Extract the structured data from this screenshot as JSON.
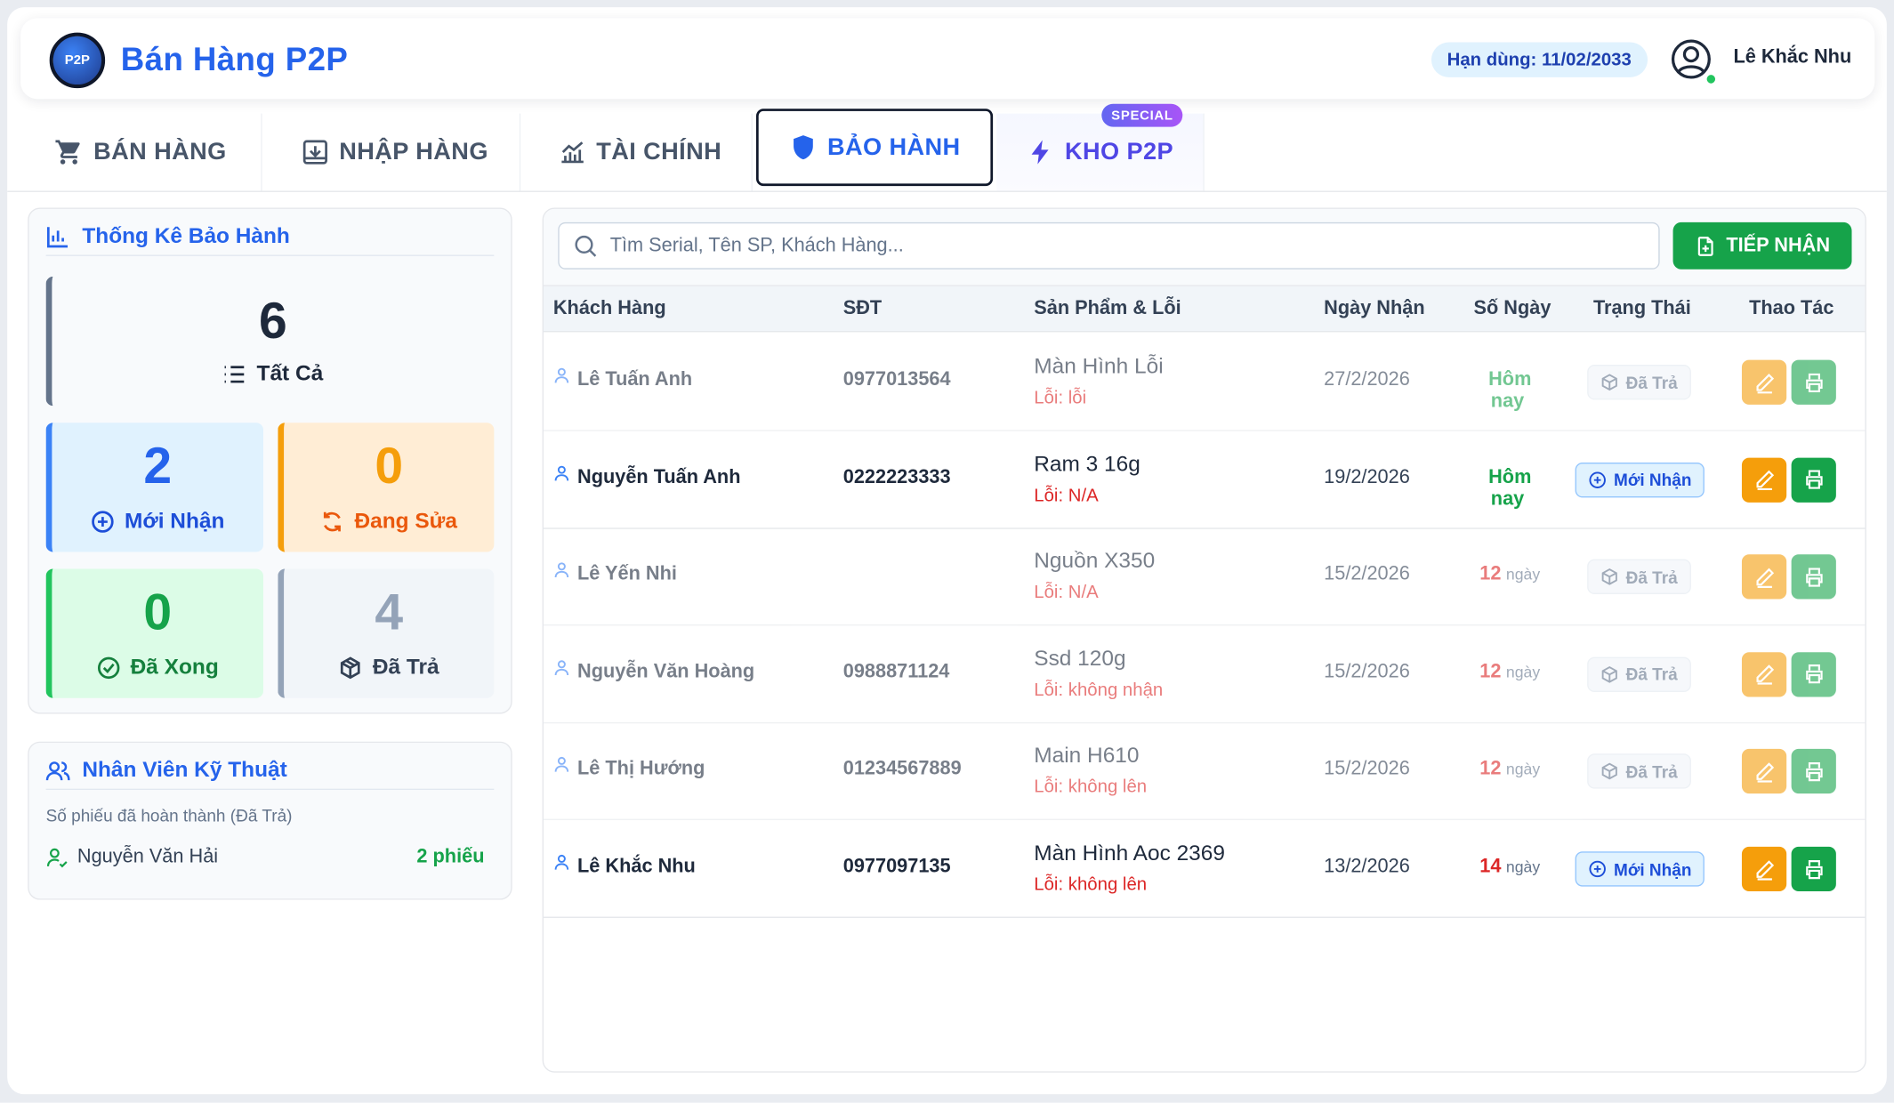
{
  "app": {
    "logo_text": "P2P",
    "title": "Bán Hàng P2P",
    "expiry": "Hạn dùng: 11/02/2033",
    "user_name": "Lê Khắc Nhu"
  },
  "tabs": [
    {
      "label": "BÁN HÀNG",
      "icon": "cart-icon"
    },
    {
      "label": "NHẬP HÀNG",
      "icon": "import-icon"
    },
    {
      "label": "TÀI CHÍNH",
      "icon": "chart-icon"
    },
    {
      "label": "BẢO HÀNH",
      "icon": "shield-icon",
      "active": true
    },
    {
      "label": "KHO P2P",
      "icon": "bolt-icon",
      "badge": "SPECIAL"
    }
  ],
  "stats_panel": {
    "title": "Thống Kê Bảo Hành",
    "all": {
      "value": "6",
      "label": "Tất Cả"
    },
    "new": {
      "value": "2",
      "label": "Mới Nhận"
    },
    "repair": {
      "value": "0",
      "label": "Đang Sửa"
    },
    "done": {
      "value": "0",
      "label": "Đã Xong"
    },
    "returned": {
      "value": "4",
      "label": "Đã Trả"
    }
  },
  "tech_panel": {
    "title": "Nhân Viên Kỹ Thuật",
    "subtitle": "Số phiếu đã hoàn thành (Đã Trả)",
    "technicians": [
      {
        "name": "Nguyễn Văn Hải",
        "count": "2 phiếu"
      }
    ]
  },
  "search": {
    "placeholder": "Tìm Serial, Tên SP, Khách Hàng..."
  },
  "receive_button": "TIẾP NHẬN",
  "table": {
    "headers": [
      "Khách Hàng",
      "SĐT",
      "Sản Phẩm & Lỗi",
      "Ngày Nhận",
      "Số Ngày",
      "Trạng Thái",
      "Thao Tác"
    ],
    "rows": [
      {
        "customer": "Lê Tuấn Anh",
        "phone": "0977013564",
        "product": "Màn Hình Lỗi",
        "error": "Lỗi: lỗi",
        "date": "27/2/2026",
        "days": "Hôm nay",
        "days_unit": "",
        "status": "Đã Trả"
      },
      {
        "customer": "Nguyễn Tuấn Anh",
        "phone": "0222223333",
        "product": "Ram 3 16g",
        "error": "Lỗi: N/A",
        "date": "19/2/2026",
        "days": "Hôm nay",
        "days_unit": "",
        "status": "Mới Nhận"
      },
      {
        "customer": "Lê Yến Nhi",
        "phone": "",
        "product": "Nguồn X350",
        "error": "Lỗi: N/A",
        "date": "15/2/2026",
        "days": "12",
        "days_unit": "ngày",
        "status": "Đã Trả"
      },
      {
        "customer": "Nguyễn Văn Hoàng",
        "phone": "0988871124",
        "product": "Ssd 120g",
        "error": "Lỗi: không nhận",
        "date": "15/2/2026",
        "days": "12",
        "days_unit": "ngày",
        "status": "Đã Trả"
      },
      {
        "customer": "Lê Thị Hướng",
        "phone": "01234567889",
        "product": "Main H610",
        "error": "Lỗi: không lên",
        "date": "15/2/2026",
        "days": "12",
        "days_unit": "ngày",
        "status": "Đã Trả"
      },
      {
        "customer": "Lê Khắc Nhu",
        "phone": "0977097135",
        "product": "Màn Hình Aoc 2369",
        "error": "Lỗi: không lên",
        "date": "13/2/2026",
        "days": "14",
        "days_unit": "ngày",
        "status": "Mới Nhận"
      }
    ]
  },
  "colors": {
    "primary": "#2563eb",
    "success": "#16a34a",
    "warning": "#f59e0b",
    "danger": "#dc2626",
    "special": "#6366f1"
  }
}
